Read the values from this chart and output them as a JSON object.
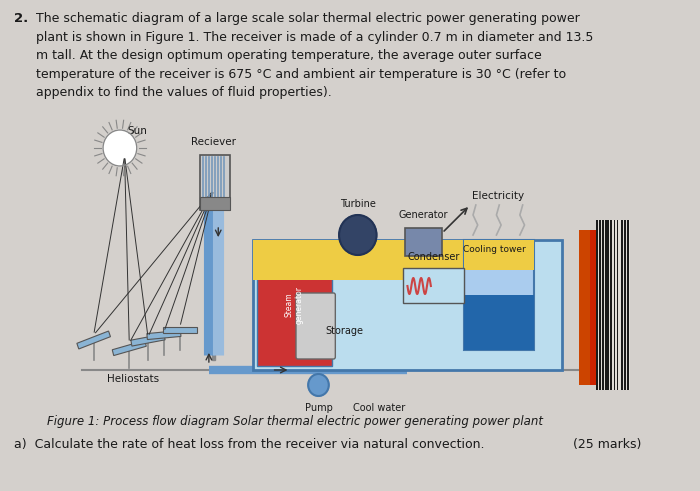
{
  "bg_color": "#d4d0cc",
  "title_number": "2.",
  "paragraph": "The schematic diagram of a large scale solar thermal electric power generating power plant is shown in Figure 1. The receiver is made of a cylinder 0.7 m in diameter and 13.5 m tall. At the design optimum operating temperature, the average outer surface temperature of the receiver is 675 °C and ambient air temperature is 30 °C (refer to appendix to find the values of fluid properties).",
  "figure_caption": "Figure 1: Process flow diagram Solar thermal electric power generating power plant",
  "question_a": "a)  Calculate the rate of heat loss from the receiver via natural convection.",
  "marks": "(25 marks)",
  "labels": {
    "sun": "Sun",
    "receiver": "Reciever",
    "heliostats": "Heliostats",
    "turbine": "Turbine",
    "generator": "Generator",
    "electricity": "Electricity",
    "cooling_tower": "Cooling tower",
    "condenser": "Condenser",
    "storage": "Storage",
    "pump": "Pump",
    "cool_water": "Cool water"
  }
}
